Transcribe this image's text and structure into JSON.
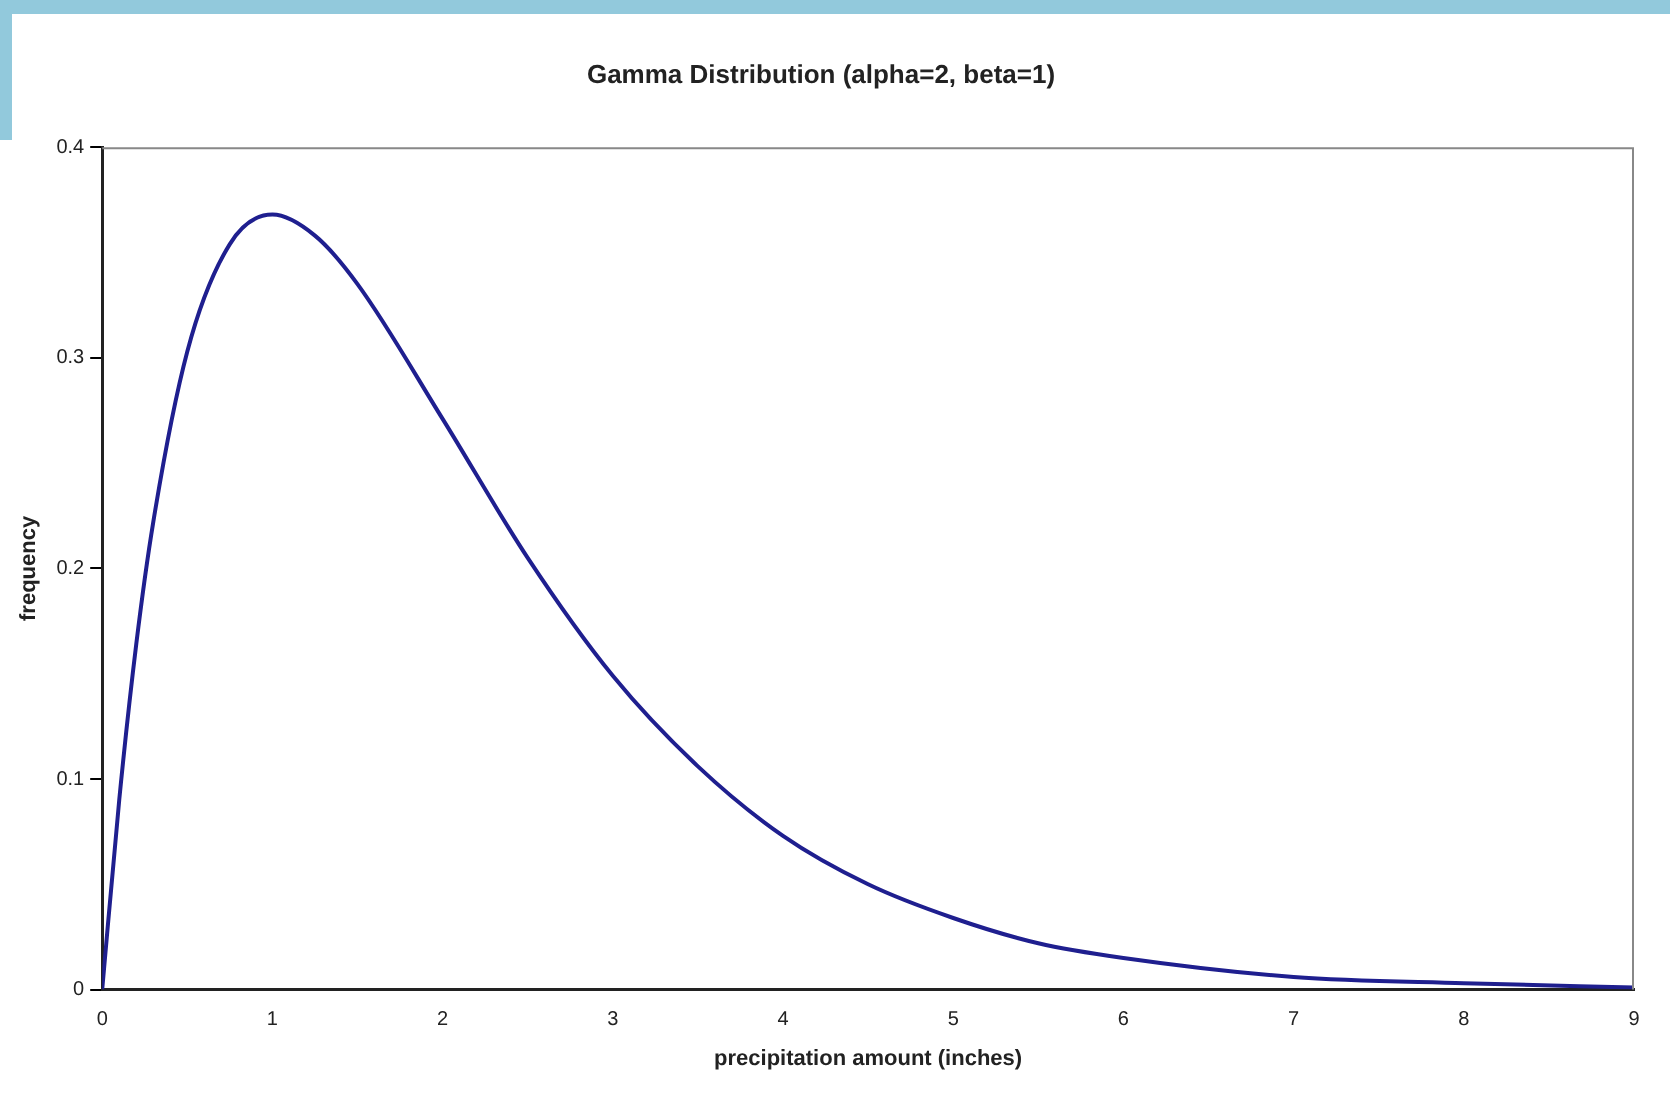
{
  "chart_data": {
    "type": "line",
    "title": "Gamma Distribution (alpha=2, beta=1)",
    "xlabel": "precipitation amount (inches)",
    "ylabel": "frequency",
    "x": [
      0,
      0.1,
      0.2,
      0.3,
      0.5,
      0.75,
      1,
      1.25,
      1.5,
      2,
      2.5,
      3,
      3.5,
      4,
      4.5,
      5,
      5.5,
      6,
      7,
      8,
      9
    ],
    "series": [
      {
        "color": "#1f1f8f",
        "values": [
          0,
          0.09,
          0.164,
          0.222,
          0.303,
          0.354,
          0.368,
          0.358,
          0.335,
          0.271,
          0.205,
          0.149,
          0.106,
          0.073,
          0.05,
          0.034,
          0.022,
          0.015,
          0.006,
          0.003,
          0.001
        ]
      }
    ],
    "xlim": [
      0,
      9
    ],
    "xticks": [
      0,
      1,
      2,
      3,
      4,
      5,
      6,
      7,
      8,
      9
    ],
    "ylim": [
      0,
      0.4
    ],
    "yticks": [
      0,
      0.1,
      0.2,
      0.3,
      0.4
    ],
    "grid": false,
    "legend": false,
    "marker": "none",
    "line_style": "solid"
  }
}
